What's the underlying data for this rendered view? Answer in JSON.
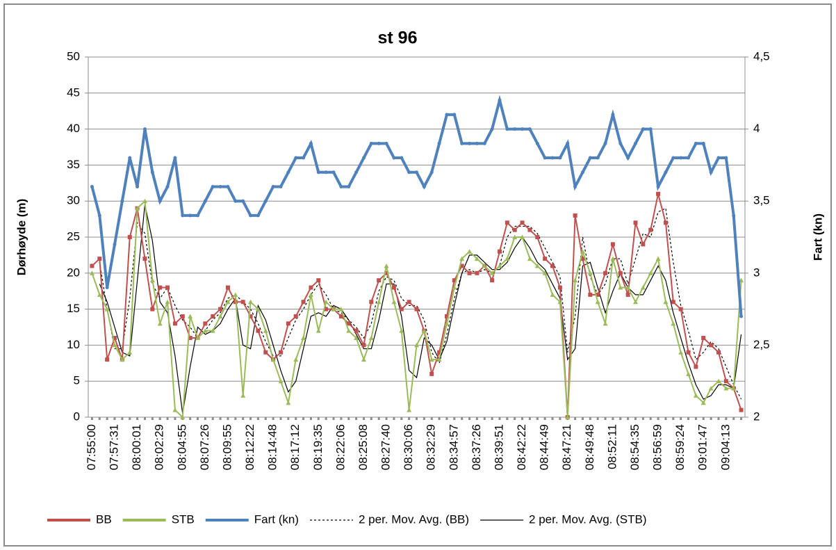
{
  "chart_data": {
    "type": "line",
    "title": "st 96",
    "y_label": "Dørhøyde (m)",
    "y2_label": "Fart (kn)",
    "ylim": [
      0,
      50
    ],
    "yticks": [
      0,
      5,
      10,
      15,
      20,
      25,
      30,
      35,
      40,
      45,
      50
    ],
    "y2lim": [
      2,
      4.5
    ],
    "y2ticks": [
      2,
      {
        "value": 2.5,
        "label": "2,5"
      },
      3,
      {
        "value": 3.5,
        "label": "3,5"
      },
      4,
      {
        "value": 4.5,
        "label": "4,5"
      }
    ],
    "grid": true,
    "legend": "bottom",
    "categories": [
      "07:55:00",
      null,
      null,
      "07:57:31",
      null,
      null,
      "08:00:01",
      null,
      null,
      "08:02:29",
      null,
      null,
      "08:04:55",
      null,
      null,
      "08:07:26",
      null,
      null,
      "08:09:55",
      null,
      null,
      "08:12:22",
      null,
      null,
      "08:14:48",
      null,
      null,
      "08:17:12",
      null,
      null,
      "08:19:35",
      null,
      null,
      "08:22:06",
      null,
      null,
      "08:25:08",
      null,
      null,
      "08:27:40",
      null,
      null,
      "08:30:06",
      null,
      null,
      "08:32:29",
      null,
      null,
      "08:34:57",
      null,
      null,
      "08:37:26",
      null,
      null,
      "08:39:51",
      null,
      null,
      "08:42:22",
      null,
      null,
      "08:44:49",
      null,
      null,
      "08:47:21",
      null,
      null,
      "08:49:48",
      null,
      null,
      "08:52:11",
      null,
      null,
      "08:54:35",
      null,
      null,
      "08:56:59",
      null,
      null,
      "08:59:24",
      null,
      null,
      "09:01:47",
      null,
      null,
      "09:04:13",
      null,
      null
    ],
    "series": [
      {
        "name": "BB",
        "color": "#c0504d",
        "marker": "square",
        "values": [
          21,
          22,
          8,
          11,
          8,
          25,
          29,
          22,
          15,
          18,
          18,
          13,
          14,
          11,
          11,
          13,
          14,
          15,
          18,
          16,
          16,
          14,
          12,
          9,
          8,
          9,
          13,
          14,
          16,
          18,
          19,
          15,
          15,
          14,
          13,
          12,
          10,
          16,
          19,
          20,
          18,
          15,
          16,
          15,
          12,
          6,
          9,
          14,
          19,
          21,
          20,
          20,
          21,
          19,
          23,
          27,
          26,
          27,
          26,
          25,
          22,
          21,
          18,
          0,
          28,
          22,
          17,
          17,
          20,
          24,
          20,
          17,
          27,
          24,
          26,
          31,
          27,
          16,
          15,
          9,
          7,
          11,
          10,
          9,
          5,
          4,
          1
        ]
      },
      {
        "name": "STB",
        "color": "#9bbb59",
        "marker": "triangle",
        "values": [
          20,
          17,
          15,
          10,
          8,
          9,
          29,
          30,
          19,
          13,
          16,
          1,
          0,
          14,
          11,
          12,
          12,
          14,
          16,
          17,
          3,
          16,
          15,
          12,
          8,
          5,
          2,
          8,
          11,
          17,
          12,
          16,
          15,
          15,
          12,
          11,
          8,
          11,
          16,
          21,
          16,
          12,
          1,
          10,
          12,
          8,
          8,
          13,
          18,
          22,
          23,
          22,
          21,
          20,
          21,
          22,
          25,
          25,
          22,
          21,
          20,
          17,
          16,
          0,
          19,
          23,
          20,
          16,
          13,
          22,
          18,
          18,
          16,
          18,
          20,
          22,
          16,
          13,
          9,
          6,
          3,
          2,
          4,
          5,
          4,
          4,
          19
        ]
      },
      {
        "name": "Fart (kn)",
        "color": "#4f81bd",
        "marker": "dot",
        "axis": "y2",
        "values": [
          3.6,
          3.4,
          2.9,
          3.2,
          3.5,
          3.8,
          3.6,
          4.0,
          3.7,
          3.5,
          3.6,
          3.8,
          3.4,
          3.4,
          3.4,
          3.5,
          3.6,
          3.6,
          3.6,
          3.5,
          3.5,
          3.4,
          3.4,
          3.5,
          3.6,
          3.6,
          3.7,
          3.8,
          3.8,
          3.9,
          3.7,
          3.7,
          3.7,
          3.6,
          3.6,
          3.7,
          3.8,
          3.9,
          3.9,
          3.9,
          3.8,
          3.8,
          3.7,
          3.7,
          3.6,
          3.7,
          3.9,
          4.1,
          4.1,
          3.9,
          3.9,
          3.9,
          3.9,
          4.0,
          4.2,
          4.0,
          4.0,
          4.0,
          4.0,
          3.9,
          3.8,
          3.8,
          3.8,
          3.9,
          3.6,
          3.7,
          3.8,
          3.8,
          3.9,
          4.1,
          3.9,
          3.8,
          3.9,
          4.0,
          4.0,
          3.6,
          3.7,
          3.8,
          3.8,
          3.8,
          3.9,
          3.9,
          3.7,
          3.8,
          3.8,
          3.4,
          2.7
        ]
      }
    ],
    "trendlines": [
      {
        "name": "2 per. Mov. Avg. (BB)",
        "source": 0,
        "period": 2,
        "style": "dotted",
        "color": "#000000"
      },
      {
        "name": "2 per. Mov. Avg. (STB)",
        "source": 1,
        "period": 2,
        "style": "solid",
        "color": "#000000"
      }
    ]
  }
}
